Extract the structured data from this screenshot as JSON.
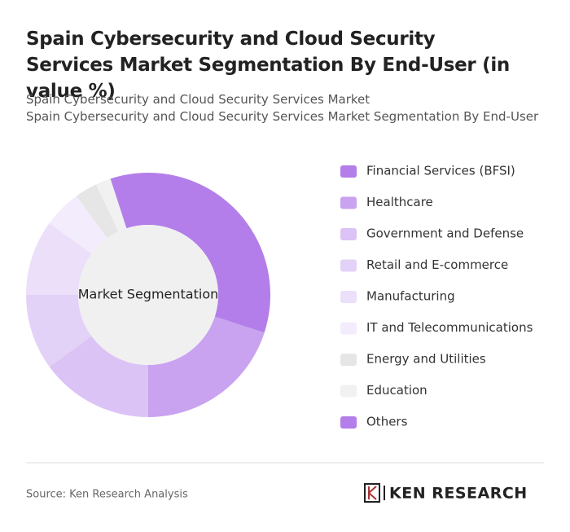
{
  "chart_data": {
    "type": "donut",
    "title": "Spain Cybersecurity and Cloud Security Services Market Segmentation By End-User (in value %)",
    "subtitles": [
      "Spain Cybersecurity and Cloud Security Services Market",
      "Spain Cybersecurity and Cloud Security Services Market Segmentation By End-User"
    ],
    "center_label": "Market Segmentation",
    "categories": [
      "Financial Services (BFSI)",
      "Healthcare",
      "Government and Defense",
      "Retail and E-commerce",
      "Manufacturing",
      "IT and Telecommunications",
      "Energy and Utilities",
      "Education",
      "Others"
    ],
    "values": [
      30,
      20,
      15,
      10,
      10,
      5,
      3,
      2,
      5
    ],
    "colors": [
      "#b37ee9",
      "#c9a2f0",
      "#dcc3f6",
      "#e3d2f7",
      "#ebdffa",
      "#f3ecfc",
      "#e6e6e6",
      "#f1f1f1",
      "#b37ee9"
    ],
    "source": "Source: Ken Research Analysis",
    "logo": "KEN RESEARCH"
  }
}
